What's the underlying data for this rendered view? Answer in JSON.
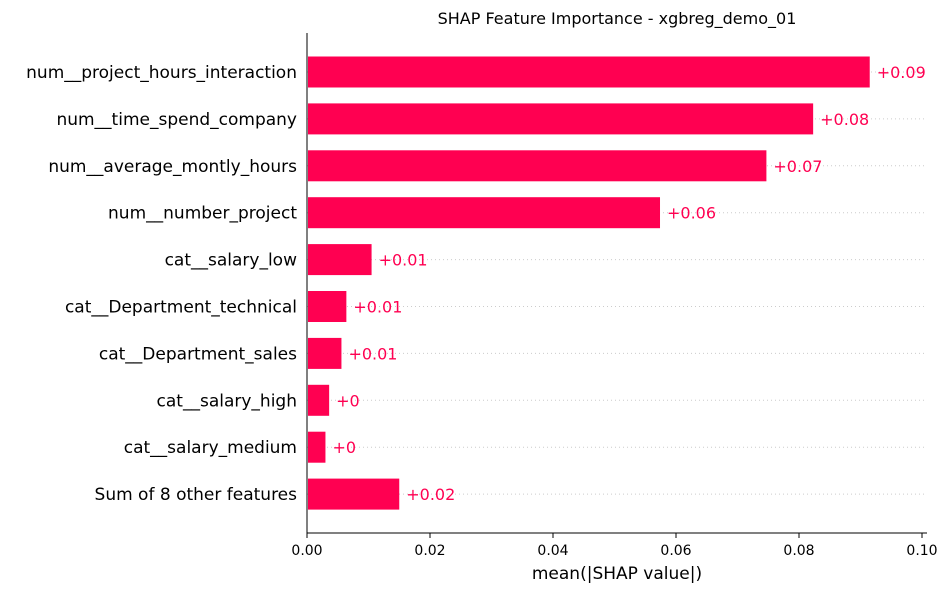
{
  "chart_data": {
    "type": "bar",
    "orientation": "horizontal",
    "title": "SHAP Feature Importance - xgbreg_demo_01",
    "xlabel": "mean(|SHAP value|)",
    "ylabel": "",
    "xlim": [
      0,
      0.1
    ],
    "xticks": [
      "0.00",
      "0.02",
      "0.04",
      "0.06",
      "0.08",
      "0.10"
    ],
    "grid": "dotted row guides",
    "bar_color": "#ff0051",
    "categories": [
      "num__project_hours_interaction",
      "num__time_spend_company",
      "num__average_montly_hours",
      "num__number_project",
      "cat__salary_low",
      "cat__Department_technical",
      "cat__Department_sales",
      "cat__salary_high",
      "cat__salary_medium",
      "Sum of 8 other features"
    ],
    "values": [
      0.0915,
      0.0823,
      0.0747,
      0.0574,
      0.0105,
      0.0064,
      0.0056,
      0.0036,
      0.003,
      0.015
    ],
    "value_labels": [
      "+0.09",
      "+0.08",
      "+0.07",
      "+0.06",
      "+0.01",
      "+0.01",
      "+0.01",
      "+0",
      "+0",
      "+0.02"
    ]
  }
}
